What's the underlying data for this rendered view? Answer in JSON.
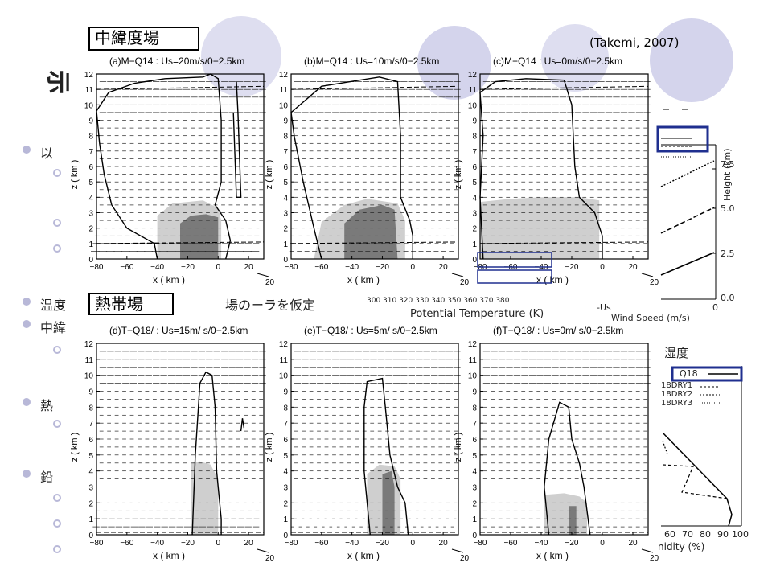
{
  "slide": {
    "label_midlat": "中緯度場",
    "label_tropical": "熱帯場",
    "citation": "(Takemi, 2007)",
    "fragments": {
      "title_stub": "示",
      "b1": "以",
      "b2": "温度",
      "b2b": "場のーラを仮定",
      "b3": "中緯",
      "b4": "熱",
      "b5": "鉛",
      "humidity_label": "湿度"
    }
  },
  "right_top_panel": {
    "ylabel": "Height (km)",
    "yticks": [
      "0.0",
      "2.5",
      "5.0",
      "7.5"
    ],
    "xtick0": "0",
    "xlabel": "Wind Speed (m/s)",
    "minus_us": "-Us",
    "pt_xlabel": "Potential Temperature (K)",
    "pt_ticks": "300 310 320 330 340 350 360 370 380"
  },
  "right_bottom_panel": {
    "legend": [
      "Q18",
      "Q18DRY1",
      "Q18DRY2",
      "Q18DRY3"
    ],
    "legend_shown": [
      "Q18",
      "18DRY1",
      "18DRY2",
      "18DRY3"
    ],
    "xticks": [
      "60",
      "70",
      "80",
      "90",
      "100"
    ],
    "xlabel": "nidity (%)"
  },
  "chart_data": [
    {
      "type": "heatmap",
      "title": "(a)M−Q14 : Us=20m/s/0−2.5km",
      "xlabel": "x  ( km )",
      "ylabel": "z  ( km )",
      "xlim": [
        -80,
        30
      ],
      "ylim": [
        0,
        12
      ],
      "xticks": [
        "−80",
        "−60",
        "−40",
        "−20",
        "0",
        "20"
      ],
      "yticks": [
        "0",
        "1",
        "2",
        "3",
        "4",
        "5",
        "6",
        "7",
        "8",
        "9",
        "10",
        "11",
        "12"
      ],
      "vector_scale": "20"
    },
    {
      "type": "heatmap",
      "title": "(b)M−Q14 : Us=10m/s/0−2.5km",
      "xlabel": "x  ( km )",
      "ylabel": "z  ( km )",
      "xlim": [
        -80,
        30
      ],
      "ylim": [
        0,
        12
      ],
      "xticks": [
        "−80",
        "−60",
        "−40",
        "−20",
        "0",
        "20"
      ],
      "yticks": [
        "0",
        "1",
        "2",
        "3",
        "4",
        "5",
        "6",
        "7",
        "8",
        "9",
        "10",
        "11",
        "12"
      ],
      "vector_scale": "20"
    },
    {
      "type": "heatmap",
      "title": "(c)M−Q14 : Us=0m/s/0−2.5km",
      "xlabel": "x  ( km )",
      "ylabel": "z  ( km )",
      "xlim": [
        -80,
        30
      ],
      "ylim": [
        0,
        12
      ],
      "xticks": [
        "−80",
        "−60",
        "−40",
        "−20",
        "0",
        "20"
      ],
      "yticks": [
        "0",
        "1",
        "2",
        "3",
        "4",
        "5",
        "6",
        "7",
        "8",
        "9",
        "10",
        "11",
        "12"
      ],
      "vector_scale": "20"
    },
    {
      "type": "heatmap",
      "title": "(d)T−Q18/ : Us=15m/ s/0−2.5km",
      "xlabel": "x  ( km )",
      "ylabel": "z  ( km )",
      "xlim": [
        -80,
        30
      ],
      "ylim": [
        0,
        12
      ],
      "xticks": [
        "−80",
        "−60",
        "−40",
        "−20",
        "0",
        "20"
      ],
      "yticks": [
        "0",
        "1",
        "2",
        "3",
        "4",
        "5",
        "6",
        "7",
        "8",
        "9",
        "10",
        "11",
        "12"
      ],
      "vector_scale": "20"
    },
    {
      "type": "heatmap",
      "title": "(e)T−Q18/ : Us=5m/ s/0−2.5km",
      "xlabel": "x  ( km )",
      "ylabel": "z  ( km )",
      "xlim": [
        -80,
        30
      ],
      "ylim": [
        0,
        12
      ],
      "xticks": [
        "−80",
        "−60",
        "−40",
        "−20",
        "0",
        "20"
      ],
      "yticks": [
        "0",
        "1",
        "2",
        "3",
        "4",
        "5",
        "6",
        "7",
        "8",
        "9",
        "10",
        "11",
        "12"
      ],
      "vector_scale": "20"
    },
    {
      "type": "heatmap",
      "title": "(f)T−Q18/ : Us=0m/ s/0−2.5km",
      "xlabel": "x  ( km )",
      "ylabel": "z  ( km )",
      "xlim": [
        -80,
        30
      ],
      "ylim": [
        0,
        12
      ],
      "xticks": [
        "−80",
        "−60",
        "−40",
        "−20",
        "0",
        "20"
      ],
      "yticks": [
        "0",
        "1",
        "2",
        "3",
        "4",
        "5",
        "6",
        "7",
        "8",
        "9",
        "10",
        "11",
        "12"
      ],
      "vector_scale": "20"
    }
  ],
  "colors": {
    "light_shade": "#cfcfcf",
    "dark_shade": "#7a7a7a",
    "accent_box": "#1f2f8f",
    "deco_circle": "#d8d8ee"
  }
}
